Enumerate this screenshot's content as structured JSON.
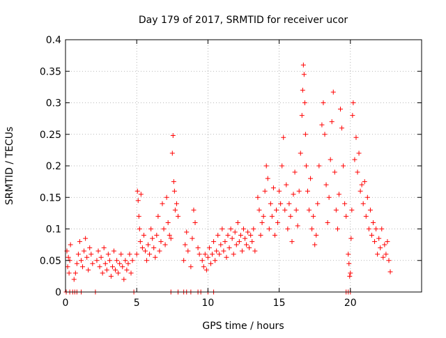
{
  "chart_data": {
    "type": "scatter",
    "title": "Day 179 of 2017, SRMTID for receiver ucor",
    "xlabel": "GPS time / hours",
    "ylabel": "SRMTID / TECUs",
    "xlim": [
      0,
      25
    ],
    "ylim": [
      0,
      0.4
    ],
    "x_ticks": [
      0,
      5,
      10,
      15,
      20
    ],
    "x_tick_labels": [
      "0",
      "5",
      "10",
      "15",
      "20"
    ],
    "y_ticks": [
      0,
      0.05,
      0.1,
      0.15,
      0.2,
      0.25,
      0.3,
      0.35,
      0.4
    ],
    "y_tick_labels": [
      "0",
      "0.05",
      "0.1",
      "0.15",
      "0.2",
      "0.25",
      "0.3",
      "0.35",
      "0.4"
    ],
    "grid": true,
    "marker": "+",
    "color": "#ff0000",
    "series": [
      {
        "name": "SRMTID",
        "points": [
          [
            0.1,
            0.065
          ],
          [
            0.15,
            0.04
          ],
          [
            0.2,
            0.055
          ],
          [
            0.25,
            0.03
          ],
          [
            0.3,
            0.05
          ],
          [
            0.35,
            0.075
          ],
          [
            0.6,
            0.02
          ],
          [
            0.7,
            0.03
          ],
          [
            0.8,
            0.045
          ],
          [
            0.9,
            0.06
          ],
          [
            1.0,
            0.08
          ],
          [
            1.1,
            0.05
          ],
          [
            1.2,
            0.04
          ],
          [
            1.3,
            0.065
          ],
          [
            1.4,
            0.085
          ],
          [
            1.5,
            0.055
          ],
          [
            1.6,
            0.035
          ],
          [
            1.7,
            0.07
          ],
          [
            1.8,
            0.06
          ],
          [
            1.9,
            0.045
          ],
          [
            2.2,
            0.05
          ],
          [
            2.3,
            0.065
          ],
          [
            2.4,
            0.04
          ],
          [
            2.5,
            0.055
          ],
          [
            2.6,
            0.03
          ],
          [
            2.7,
            0.07
          ],
          [
            2.8,
            0.045
          ],
          [
            2.9,
            0.035
          ],
          [
            3.0,
            0.06
          ],
          [
            3.1,
            0.05
          ],
          [
            3.2,
            0.025
          ],
          [
            3.3,
            0.04
          ],
          [
            3.4,
            0.065
          ],
          [
            3.5,
            0.035
          ],
          [
            3.6,
            0.05
          ],
          [
            3.7,
            0.03
          ],
          [
            3.8,
            0.045
          ],
          [
            3.9,
            0.06
          ],
          [
            4.0,
            0.04
          ],
          [
            4.1,
            0.02
          ],
          [
            4.2,
            0.05
          ],
          [
            4.3,
            0.035
          ],
          [
            4.4,
            0.045
          ],
          [
            4.5,
            0.06
          ],
          [
            4.6,
            0.03
          ],
          [
            4.7,
            0.05
          ],
          [
            5.0,
            0.06
          ],
          [
            5.05,
            0.16
          ],
          [
            5.1,
            0.145
          ],
          [
            5.15,
            0.12
          ],
          [
            5.2,
            0.1
          ],
          [
            5.25,
            0.08
          ],
          [
            5.3,
            0.155
          ],
          [
            5.4,
            0.07
          ],
          [
            5.5,
            0.09
          ],
          [
            5.6,
            0.065
          ],
          [
            5.7,
            0.05
          ],
          [
            5.8,
            0.075
          ],
          [
            5.9,
            0.06
          ],
          [
            6.0,
            0.1
          ],
          [
            6.1,
            0.085
          ],
          [
            6.2,
            0.07
          ],
          [
            6.3,
            0.055
          ],
          [
            6.4,
            0.09
          ],
          [
            6.5,
            0.12
          ],
          [
            6.6,
            0.065
          ],
          [
            6.7,
            0.08
          ],
          [
            6.8,
            0.14
          ],
          [
            6.9,
            0.1
          ],
          [
            7.0,
            0.075
          ],
          [
            7.1,
            0.15
          ],
          [
            7.2,
            0.11
          ],
          [
            7.3,
            0.09
          ],
          [
            7.4,
            0.085
          ],
          [
            7.5,
            0.22
          ],
          [
            7.55,
            0.248
          ],
          [
            7.6,
            0.175
          ],
          [
            7.65,
            0.16
          ],
          [
            7.7,
            0.13
          ],
          [
            7.8,
            0.14
          ],
          [
            7.9,
            0.12
          ],
          [
            8.3,
            0.05
          ],
          [
            8.4,
            0.075
          ],
          [
            8.5,
            0.095
          ],
          [
            8.6,
            0.065
          ],
          [
            8.8,
            0.04
          ],
          [
            8.9,
            0.085
          ],
          [
            9.0,
            0.13
          ],
          [
            9.1,
            0.11
          ],
          [
            9.3,
            0.07
          ],
          [
            9.4,
            0.06
          ],
          [
            9.6,
            0.05
          ],
          [
            9.7,
            0.04
          ],
          [
            9.8,
            0.06
          ],
          [
            9.9,
            0.035
          ],
          [
            10.0,
            0.055
          ],
          [
            10.1,
            0.07
          ],
          [
            10.2,
            0.045
          ],
          [
            10.3,
            0.06
          ],
          [
            10.4,
            0.08
          ],
          [
            10.5,
            0.05
          ],
          [
            10.6,
            0.065
          ],
          [
            10.7,
            0.09
          ],
          [
            10.8,
            0.06
          ],
          [
            10.9,
            0.075
          ],
          [
            11.0,
            0.1
          ],
          [
            11.1,
            0.065
          ],
          [
            11.2,
            0.08
          ],
          [
            11.3,
            0.055
          ],
          [
            11.4,
            0.09
          ],
          [
            11.5,
            0.07
          ],
          [
            11.6,
            0.1
          ],
          [
            11.7,
            0.085
          ],
          [
            11.8,
            0.06
          ],
          [
            11.9,
            0.095
          ],
          [
            12.0,
            0.075
          ],
          [
            12.1,
            0.11
          ],
          [
            12.2,
            0.08
          ],
          [
            12.3,
            0.09
          ],
          [
            12.4,
            0.065
          ],
          [
            12.5,
            0.1
          ],
          [
            12.6,
            0.085
          ],
          [
            12.7,
            0.075
          ],
          [
            12.8,
            0.095
          ],
          [
            12.9,
            0.07
          ],
          [
            13.0,
            0.09
          ],
          [
            13.1,
            0.08
          ],
          [
            13.2,
            0.1
          ],
          [
            13.3,
            0.065
          ],
          [
            13.5,
            0.15
          ],
          [
            13.6,
            0.13
          ],
          [
            13.7,
            0.09
          ],
          [
            13.8,
            0.11
          ],
          [
            13.9,
            0.12
          ],
          [
            14.0,
            0.16
          ],
          [
            14.1,
            0.2
          ],
          [
            14.2,
            0.18
          ],
          [
            14.3,
            0.1
          ],
          [
            14.4,
            0.14
          ],
          [
            14.5,
            0.12
          ],
          [
            14.6,
            0.165
          ],
          [
            14.7,
            0.09
          ],
          [
            14.8,
            0.13
          ],
          [
            14.9,
            0.11
          ],
          [
            15.0,
            0.16
          ],
          [
            15.1,
            0.14
          ],
          [
            15.2,
            0.2
          ],
          [
            15.3,
            0.245
          ],
          [
            15.4,
            0.13
          ],
          [
            15.5,
            0.17
          ],
          [
            15.6,
            0.1
          ],
          [
            15.7,
            0.14
          ],
          [
            15.8,
            0.12
          ],
          [
            15.9,
            0.08
          ],
          [
            16.0,
            0.155
          ],
          [
            16.1,
            0.19
          ],
          [
            16.2,
            0.13
          ],
          [
            16.3,
            0.105
          ],
          [
            16.4,
            0.16
          ],
          [
            16.5,
            0.22
          ],
          [
            16.6,
            0.28
          ],
          [
            16.65,
            0.32
          ],
          [
            16.7,
            0.36
          ],
          [
            16.75,
            0.345
          ],
          [
            16.8,
            0.3
          ],
          [
            16.85,
            0.25
          ],
          [
            16.9,
            0.2
          ],
          [
            17.0,
            0.16
          ],
          [
            17.1,
            0.13
          ],
          [
            17.2,
            0.18
          ],
          [
            17.3,
            0.1
          ],
          [
            17.4,
            0.12
          ],
          [
            17.5,
            0.075
          ],
          [
            17.6,
            0.09
          ],
          [
            17.7,
            0.14
          ],
          [
            17.8,
            0.2
          ],
          [
            18.0,
            0.265
          ],
          [
            18.1,
            0.3
          ],
          [
            18.2,
            0.25
          ],
          [
            18.3,
            0.17
          ],
          [
            18.4,
            0.11
          ],
          [
            18.5,
            0.15
          ],
          [
            18.6,
            0.21
          ],
          [
            18.7,
            0.27
          ],
          [
            18.8,
            0.317
          ],
          [
            18.9,
            0.19
          ],
          [
            19.0,
            0.13
          ],
          [
            19.1,
            0.1
          ],
          [
            19.2,
            0.155
          ],
          [
            19.3,
            0.29
          ],
          [
            19.4,
            0.26
          ],
          [
            19.5,
            0.2
          ],
          [
            19.6,
            0.14
          ],
          [
            19.7,
            0.12
          ],
          [
            19.85,
            0.06
          ],
          [
            19.9,
            0.045
          ],
          [
            19.95,
            0.025
          ],
          [
            20.0,
            0.03
          ],
          [
            20.05,
            0.085
          ],
          [
            20.1,
            0.13
          ],
          [
            20.15,
            0.28
          ],
          [
            20.2,
            0.3
          ],
          [
            20.3,
            0.21
          ],
          [
            20.4,
            0.245
          ],
          [
            20.5,
            0.19
          ],
          [
            20.6,
            0.22
          ],
          [
            20.7,
            0.16
          ],
          [
            20.8,
            0.17
          ],
          [
            20.9,
            0.14
          ],
          [
            21.0,
            0.175
          ],
          [
            21.1,
            0.12
          ],
          [
            21.2,
            0.15
          ],
          [
            21.3,
            0.1
          ],
          [
            21.4,
            0.13
          ],
          [
            21.5,
            0.09
          ],
          [
            21.6,
            0.11
          ],
          [
            21.7,
            0.08
          ],
          [
            21.8,
            0.1
          ],
          [
            21.9,
            0.06
          ],
          [
            22.0,
            0.085
          ],
          [
            22.1,
            0.07
          ],
          [
            22.2,
            0.1
          ],
          [
            22.3,
            0.055
          ],
          [
            22.4,
            0.075
          ],
          [
            22.5,
            0.06
          ],
          [
            22.6,
            0.08
          ],
          [
            22.7,
            0.05
          ],
          [
            22.8,
            0.032
          ],
          [
            0.05,
            0
          ],
          [
            0.3,
            0
          ],
          [
            0.5,
            0
          ],
          [
            0.65,
            0
          ],
          [
            0.8,
            0
          ],
          [
            1.1,
            0
          ],
          [
            2.1,
            0
          ],
          [
            4.8,
            0
          ],
          [
            7.4,
            0
          ],
          [
            7.9,
            0
          ],
          [
            8.3,
            0
          ],
          [
            8.5,
            0
          ],
          [
            8.8,
            0
          ],
          [
            9.3,
            0
          ],
          [
            9.5,
            0
          ],
          [
            10.0,
            0
          ],
          [
            10.4,
            0
          ],
          [
            19.7,
            0
          ],
          [
            19.85,
            0
          ],
          [
            20.0,
            0
          ]
        ]
      }
    ]
  }
}
